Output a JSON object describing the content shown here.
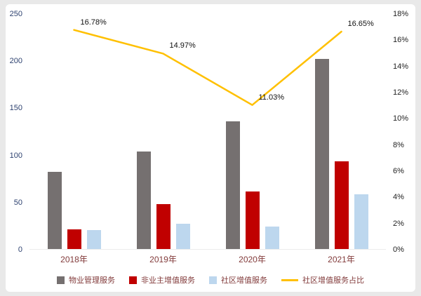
{
  "chart_data": {
    "type": "bar+line",
    "title": "",
    "categories": [
      "2018年",
      "2019年",
      "2020年",
      "2021年"
    ],
    "series": [
      {
        "name": "物业管理服务",
        "kind": "bar",
        "color": "#757070",
        "axis": "left",
        "values": [
          82,
          104,
          136,
          202
        ]
      },
      {
        "name": "非业主增值服务",
        "kind": "bar",
        "color": "#c00000",
        "axis": "left",
        "values": [
          21,
          48,
          61,
          93
        ]
      },
      {
        "name": "社区增值服务",
        "kind": "bar",
        "color": "#bdd7ee",
        "axis": "left",
        "values": [
          20,
          27,
          24,
          58
        ]
      },
      {
        "name": "社区增值服务占比",
        "kind": "line",
        "color": "#ffc000",
        "axis": "right",
        "values": [
          16.78,
          14.97,
          11.03,
          16.65
        ],
        "point_labels": [
          "16.78%",
          "14.97%",
          "11.03%",
          "16.65%"
        ]
      }
    ],
    "left_axis": {
      "min": 0,
      "max": 250,
      "ticks": [
        "0",
        "50",
        "100",
        "150",
        "200",
        "250"
      ]
    },
    "right_axis": {
      "min": 0,
      "max": 18,
      "ticks": [
        "0%",
        "2%",
        "4%",
        "6%",
        "8%",
        "10%",
        "12%",
        "14%",
        "16%",
        "18%"
      ]
    },
    "grid": false,
    "legend_position": "bottom"
  }
}
